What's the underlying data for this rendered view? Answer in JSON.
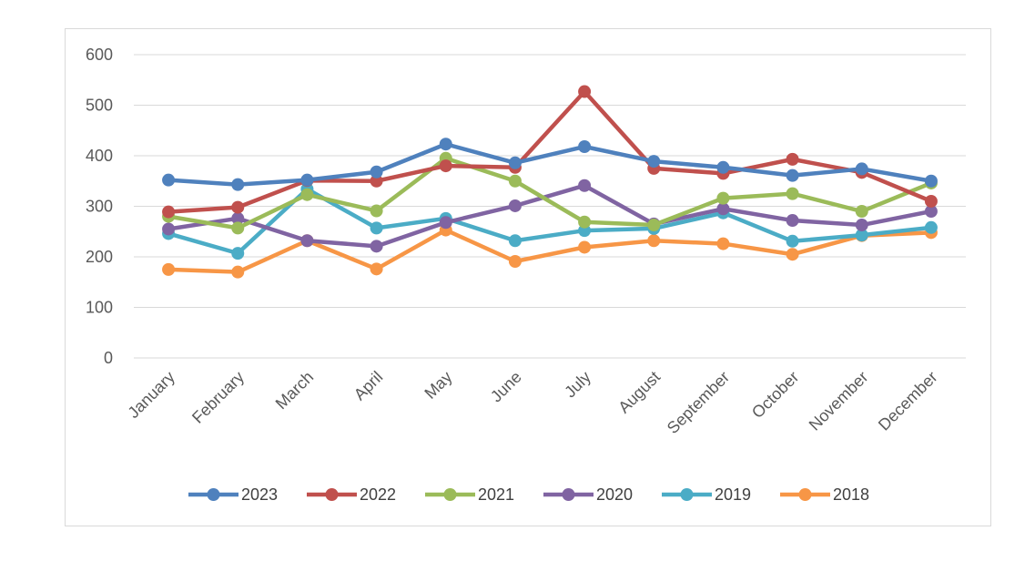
{
  "chart_data": {
    "type": "line",
    "title": "",
    "xlabel": "",
    "ylabel": "",
    "ylim": [
      0,
      600
    ],
    "yticks": [
      0,
      100,
      200,
      300,
      400,
      500,
      600
    ],
    "grid": true,
    "legend_position": "bottom",
    "categories": [
      "January",
      "February",
      "March",
      "April",
      "May",
      "June",
      "July",
      "August",
      "September",
      "October",
      "November",
      "December"
    ],
    "series": [
      {
        "name": "2023",
        "color": "#4f81bd",
        "values": [
          352,
          343,
          352,
          368,
          423,
          386,
          418,
          389,
          377,
          361,
          374,
          350
        ]
      },
      {
        "name": "2022",
        "color": "#c0504d",
        "values": [
          289,
          298,
          351,
          350,
          380,
          377,
          527,
          375,
          365,
          393,
          367,
          310
        ]
      },
      {
        "name": "2021",
        "color": "#9bbb59",
        "values": [
          280,
          257,
          323,
          291,
          395,
          350,
          269,
          263,
          316,
          325,
          290,
          346
        ]
      },
      {
        "name": "2020",
        "color": "#8064a2",
        "values": [
          255,
          276,
          232,
          221,
          268,
          301,
          341,
          265,
          295,
          272,
          263,
          290
        ]
      },
      {
        "name": "2019",
        "color": "#4bacc6",
        "values": [
          246,
          207,
          334,
          257,
          276,
          232,
          252,
          256,
          287,
          231,
          243,
          258
        ]
      },
      {
        "name": "2018",
        "color": "#f79646",
        "values": [
          175,
          170,
          232,
          176,
          253,
          191,
          219,
          232,
          226,
          205,
          242,
          248
        ]
      }
    ]
  }
}
